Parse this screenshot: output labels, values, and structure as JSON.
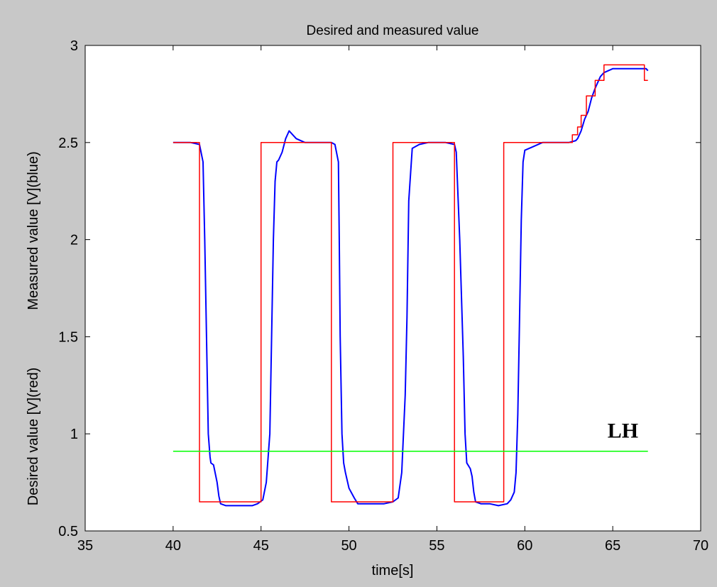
{
  "chart_data": {
    "type": "line",
    "title": "Desired and measured value",
    "xlabel": "time[s]",
    "ylabel_upper": "Measured value  [V](blue)",
    "ylabel_lower": "Desired value  [V](red)",
    "xlim": [
      35,
      70
    ],
    "ylim": [
      0.5,
      3
    ],
    "xticks": [
      35,
      40,
      45,
      50,
      55,
      60,
      65,
      70
    ],
    "yticks": [
      0.5,
      1,
      1.5,
      2,
      2.5,
      3
    ],
    "xtick_labels": [
      "35",
      "40",
      "45",
      "50",
      "55",
      "60",
      "65",
      "70"
    ],
    "ytick_labels": [
      "0.5",
      "1",
      "1.5",
      "2",
      "2.5",
      "3"
    ],
    "grid": false,
    "legend": "none",
    "annotations": [
      {
        "text": "LH",
        "x": 64.7,
        "y": 0.98,
        "color": "#00ff00"
      }
    ],
    "series": [
      {
        "color": "#0000ff",
        "x": [
          40.0,
          40.5,
          41.0,
          41.5,
          41.7,
          41.8,
          41.9,
          42.0,
          42.1,
          42.15,
          42.3,
          42.5,
          42.6,
          42.7,
          43.0,
          43.5,
          44.0,
          44.5,
          44.8,
          45.1,
          45.3,
          45.5,
          45.6,
          45.7,
          45.8,
          45.9,
          46.0,
          46.2,
          46.4,
          46.6,
          47.0,
          47.5,
          48.0,
          48.5,
          49.0,
          49.2,
          49.4,
          49.45,
          49.5,
          49.6,
          49.7,
          49.8,
          50.0,
          50.3,
          50.5,
          51.0,
          51.5,
          52.0,
          52.5,
          52.8,
          53.0,
          53.2,
          53.3,
          53.4,
          53.6,
          53.8,
          54.0,
          54.5,
          55.0,
          55.5,
          56.0,
          56.1,
          56.3,
          56.5,
          56.6,
          56.7,
          56.9,
          57.0,
          57.1,
          57.2,
          57.5,
          58.0,
          58.5,
          59.0,
          59.2,
          59.4,
          59.5,
          59.6,
          59.7,
          59.8,
          59.9,
          60.0,
          60.5,
          61.0,
          61.5,
          62.0,
          62.5,
          62.9,
          63.0,
          63.2,
          63.4,
          63.6,
          63.8,
          64.0,
          64.3,
          64.5,
          65.0,
          65.5,
          66.0,
          66.5,
          66.9,
          67.0
        ],
        "y": [
          2.5,
          2.5,
          2.5,
          2.49,
          2.4,
          2.0,
          1.5,
          1.0,
          0.88,
          0.85,
          0.84,
          0.75,
          0.68,
          0.64,
          0.63,
          0.63,
          0.63,
          0.63,
          0.64,
          0.66,
          0.75,
          1.0,
          1.5,
          2.0,
          2.3,
          2.4,
          2.41,
          2.45,
          2.52,
          2.56,
          2.52,
          2.5,
          2.5,
          2.5,
          2.5,
          2.49,
          2.4,
          2.0,
          1.5,
          1.0,
          0.85,
          0.8,
          0.72,
          0.67,
          0.64,
          0.64,
          0.64,
          0.64,
          0.65,
          0.67,
          0.8,
          1.2,
          1.6,
          2.2,
          2.47,
          2.48,
          2.49,
          2.5,
          2.5,
          2.5,
          2.49,
          2.45,
          2.0,
          1.4,
          1.0,
          0.85,
          0.82,
          0.78,
          0.7,
          0.65,
          0.64,
          0.64,
          0.63,
          0.64,
          0.66,
          0.7,
          0.8,
          1.1,
          1.6,
          2.1,
          2.4,
          2.46,
          2.48,
          2.5,
          2.5,
          2.5,
          2.5,
          2.51,
          2.52,
          2.56,
          2.62,
          2.66,
          2.73,
          2.78,
          2.84,
          2.86,
          2.88,
          2.88,
          2.88,
          2.88,
          2.88,
          2.87
        ]
      },
      {
        "color": "#ff0000",
        "x": [
          40.0,
          41.5,
          41.5,
          45.0,
          45.0,
          49.0,
          49.0,
          52.5,
          52.5,
          56.0,
          56.0,
          58.8,
          58.8,
          62.7,
          62.7,
          63.0,
          63.0,
          63.2,
          63.2,
          63.5,
          63.5,
          64.0,
          64.0,
          64.5,
          64.5,
          66.8,
          66.8,
          67.0
        ],
        "y": [
          2.5,
          2.5,
          0.65,
          0.65,
          2.5,
          2.5,
          0.65,
          0.65,
          2.5,
          2.5,
          0.65,
          0.65,
          2.5,
          2.5,
          2.54,
          2.54,
          2.58,
          2.58,
          2.64,
          2.64,
          2.74,
          2.74,
          2.82,
          2.82,
          2.9,
          2.9,
          2.82,
          2.82
        ]
      },
      {
        "color": "#00ff00",
        "x": [
          40.0,
          67.0
        ],
        "y": [
          0.91,
          0.91
        ]
      }
    ]
  }
}
